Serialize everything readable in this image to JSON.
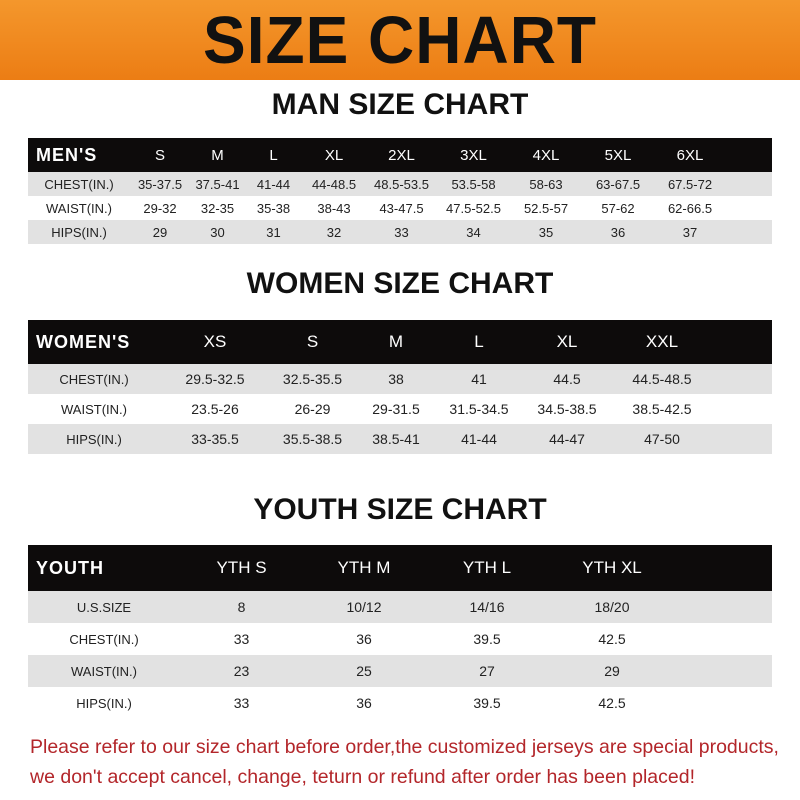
{
  "banner": {
    "title": "SIZE CHART"
  },
  "men": {
    "title": "MAN SIZE CHART",
    "header": "MEN'S",
    "sizes": [
      "S",
      "M",
      "L",
      "XL",
      "2XL",
      "3XL",
      "4XL",
      "5XL",
      "6XL"
    ],
    "rows": [
      {
        "label": "CHEST(IN.)",
        "values": [
          "35-37.5",
          "37.5-41",
          "41-44",
          "44-48.5",
          "48.5-53.5",
          "53.5-58",
          "58-63",
          "63-67.5",
          "67.5-72"
        ]
      },
      {
        "label": "WAIST(IN.)",
        "values": [
          "29-32",
          "32-35",
          "35-38",
          "38-43",
          "43-47.5",
          "47.5-52.5",
          "52.5-57",
          "57-62",
          "62-66.5"
        ]
      },
      {
        "label": "HIPS(IN.)",
        "values": [
          "29",
          "30",
          "31",
          "32",
          "33",
          "34",
          "35",
          "36",
          "37"
        ]
      }
    ]
  },
  "women": {
    "title": "WOMEN SIZE CHART",
    "header": "WOMEN'S",
    "sizes": [
      "XS",
      "S",
      "M",
      "L",
      "XL",
      "XXL"
    ],
    "rows": [
      {
        "label": "CHEST(IN.)",
        "values": [
          "29.5-32.5",
          "32.5-35.5",
          "38",
          "41",
          "44.5",
          "44.5-48.5"
        ]
      },
      {
        "label": "WAIST(IN.)",
        "values": [
          "23.5-26",
          "26-29",
          "29-31.5",
          "31.5-34.5",
          "34.5-38.5",
          "38.5-42.5"
        ]
      },
      {
        "label": "HIPS(IN.)",
        "values": [
          "33-35.5",
          "35.5-38.5",
          "38.5-41",
          "41-44",
          "44-47",
          "47-50"
        ]
      }
    ]
  },
  "youth": {
    "title": "YOUTH SIZE CHART",
    "header": "YOUTH",
    "sizes": [
      "YTH S",
      "YTH M",
      "YTH L",
      "YTH XL"
    ],
    "rows": [
      {
        "label": "U.S.SIZE",
        "values": [
          "8",
          "10/12",
          "14/16",
          "18/20"
        ]
      },
      {
        "label": "CHEST(IN.)",
        "values": [
          "33",
          "36",
          "39.5",
          "42.5"
        ]
      },
      {
        "label": "WAIST(IN.)",
        "values": [
          "23",
          "25",
          "27",
          "29"
        ]
      },
      {
        "label": "HIPS(IN.)",
        "values": [
          "33",
          "36",
          "39.5",
          "42.5"
        ]
      }
    ]
  },
  "note": {
    "line1": "Please refer to our size chart before order,the customized jerseys are special products,",
    "line2": "we don't accept cancel, change, teturn or refund after order has been placed!"
  },
  "colors": {
    "banner": "#ef8a1f",
    "header_row": "#0d0b0b",
    "stripe": "#e2e2e2",
    "note": "#b3262a"
  }
}
